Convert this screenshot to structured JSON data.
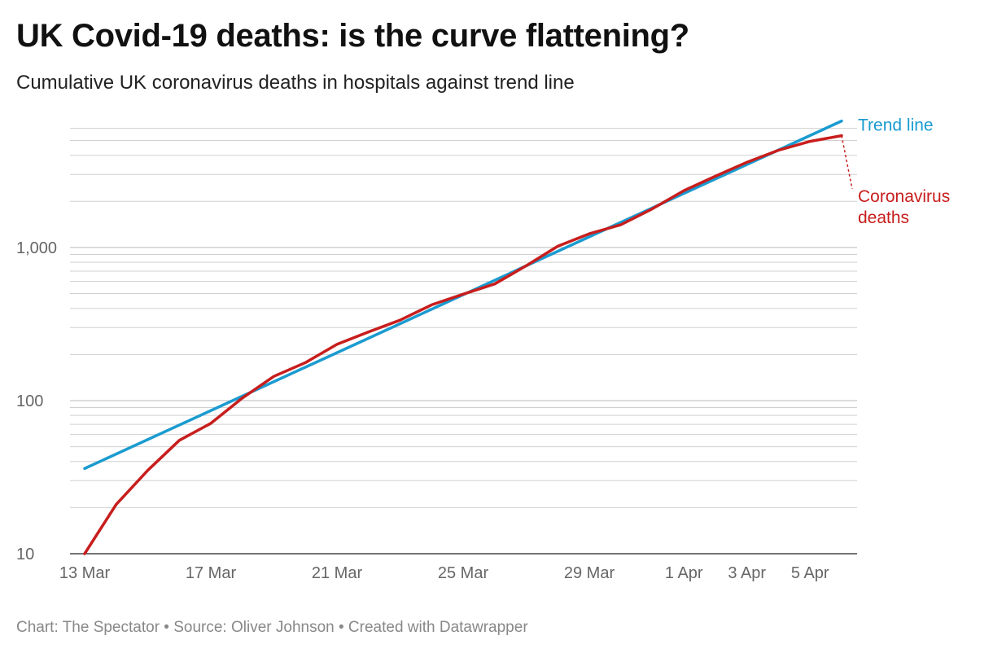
{
  "title": "UK Covid-19 deaths: is the curve flattening?",
  "subtitle": "Cumulative UK coronavirus deaths in hospitals against trend line",
  "footer": "Chart: The Spectator • Source: Oliver Johnson • Created with Datawrapper",
  "colors": {
    "trend": "#1a9bd0",
    "deaths": "#c71e1d",
    "grid": "#d0d0d0"
  },
  "chart_data": {
    "type": "line",
    "title": "UK Covid-19 deaths: is the curve flattening?",
    "subtitle": "Cumulative UK coronavirus deaths in hospitals against trend line",
    "y_scale": "log",
    "ylim": [
      10,
      7000
    ],
    "y_ticks": [
      10,
      100,
      1000
    ],
    "y_tick_labels": [
      "10",
      "100",
      "1,000"
    ],
    "x_ticks": [
      {
        "day": 0,
        "label": "13 Mar"
      },
      {
        "day": 4,
        "label": "17 Mar"
      },
      {
        "day": 8,
        "label": "21 Mar"
      },
      {
        "day": 12,
        "label": "25 Mar"
      },
      {
        "day": 16,
        "label": "29 Mar"
      },
      {
        "day": 19,
        "label": "1 Apr"
      },
      {
        "day": 21,
        "label": "3 Apr"
      },
      {
        "day": 23,
        "label": "5 Apr"
      }
    ],
    "x_range": [
      0,
      24
    ],
    "series": [
      {
        "name": "Trend line",
        "label": "Trend line",
        "points": [
          [
            0,
            36
          ],
          [
            24,
            6700
          ]
        ]
      },
      {
        "name": "Coronavirus deaths",
        "label_lines": [
          "Coronavirus",
          "deaths"
        ],
        "points": [
          [
            0,
            10
          ],
          [
            1,
            21
          ],
          [
            2,
            35
          ],
          [
            3,
            55
          ],
          [
            4,
            71
          ],
          [
            5,
            104
          ],
          [
            6,
            144
          ],
          [
            7,
            177
          ],
          [
            8,
            233
          ],
          [
            9,
            281
          ],
          [
            10,
            335
          ],
          [
            11,
            422
          ],
          [
            12,
            495
          ],
          [
            13,
            578
          ],
          [
            14,
            759
          ],
          [
            15,
            1019
          ],
          [
            16,
            1228
          ],
          [
            17,
            1408
          ],
          [
            18,
            1789
          ],
          [
            19,
            2352
          ],
          [
            20,
            2921
          ],
          [
            21,
            3605
          ],
          [
            22,
            4313
          ],
          [
            23,
            4934
          ],
          [
            24,
            5373
          ]
        ]
      }
    ]
  }
}
